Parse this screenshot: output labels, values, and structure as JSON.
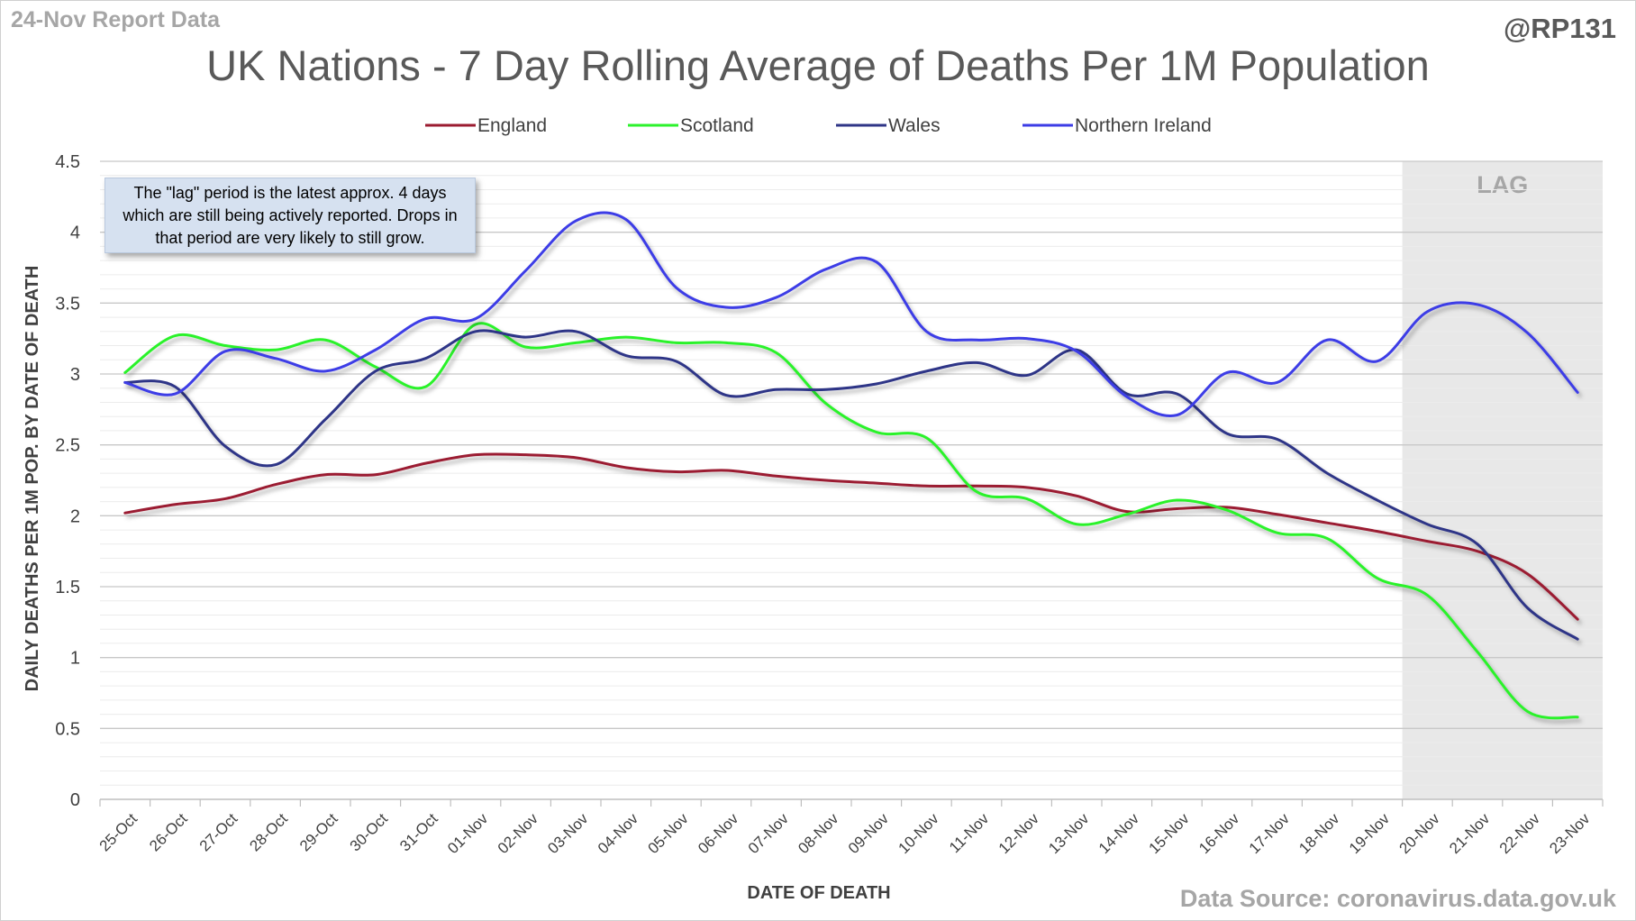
{
  "header": {
    "report_label": "24-Nov Report Data",
    "handle": "@RP131",
    "title": "UK Nations - 7 Day Rolling Average of Deaths Per 1M Population",
    "source": "Data Source: coronavirus.data.gov.uk"
  },
  "note_text": "The \"lag\" period is the latest approx. 4 days which are still being actively reported. Drops in that period are very likely to still grow.",
  "chart_data": {
    "type": "line",
    "xlabel": "DATE OF DEATH",
    "ylabel": "DAILY DEATHS PER 1M POP. BY DATE OF DEATH",
    "ylim": [
      0,
      4.5
    ],
    "yticks": [
      "0",
      "0.5",
      "1",
      "1.5",
      "2",
      "2.5",
      "3",
      "3.5",
      "4",
      "4.5"
    ],
    "legend_position": "top",
    "grid": true,
    "lag_label": "LAG",
    "lag_range": [
      "20-Nov",
      "23-Nov"
    ],
    "categories": [
      "25-Oct",
      "26-Oct",
      "27-Oct",
      "28-Oct",
      "29-Oct",
      "30-Oct",
      "31-Oct",
      "01-Nov",
      "02-Nov",
      "03-Nov",
      "04-Nov",
      "05-Nov",
      "06-Nov",
      "07-Nov",
      "08-Nov",
      "09-Nov",
      "10-Nov",
      "11-Nov",
      "12-Nov",
      "13-Nov",
      "14-Nov",
      "15-Nov",
      "16-Nov",
      "17-Nov",
      "18-Nov",
      "19-Nov",
      "20-Nov",
      "21-Nov",
      "22-Nov",
      "23-Nov"
    ],
    "series": [
      {
        "name": "England",
        "color": "#9b1b30",
        "values": [
          2.02,
          2.08,
          2.12,
          2.22,
          2.29,
          2.29,
          2.37,
          2.43,
          2.43,
          2.41,
          2.34,
          2.31,
          2.32,
          2.28,
          2.25,
          2.23,
          2.21,
          2.21,
          2.2,
          2.14,
          2.03,
          2.05,
          2.06,
          2.01,
          1.95,
          1.89,
          1.82,
          1.75,
          1.59,
          1.27
        ]
      },
      {
        "name": "Scotland",
        "color": "#2cf22c",
        "values": [
          3.01,
          3.27,
          3.2,
          3.17,
          3.24,
          3.05,
          2.91,
          3.35,
          3.19,
          3.22,
          3.26,
          3.22,
          3.22,
          3.15,
          2.79,
          2.59,
          2.55,
          2.17,
          2.12,
          1.94,
          2.01,
          2.11,
          2.04,
          1.88,
          1.84,
          1.56,
          1.44,
          1.04,
          0.62,
          0.58
        ]
      },
      {
        "name": "Wales",
        "color": "#2f3587",
        "values": [
          2.94,
          2.91,
          2.49,
          2.36,
          2.68,
          3.02,
          3.11,
          3.3,
          3.26,
          3.3,
          3.13,
          3.09,
          2.85,
          2.89,
          2.89,
          2.93,
          3.02,
          3.08,
          2.99,
          3.17,
          2.86,
          2.86,
          2.58,
          2.54,
          2.3,
          2.11,
          1.94,
          1.8,
          1.35,
          1.13
        ]
      },
      {
        "name": "Northern Ireland",
        "color": "#3c3ce6",
        "values": [
          2.94,
          2.86,
          3.16,
          3.11,
          3.02,
          3.17,
          3.39,
          3.39,
          3.73,
          4.08,
          4.09,
          3.61,
          3.47,
          3.54,
          3.74,
          3.79,
          3.3,
          3.24,
          3.25,
          3.16,
          2.84,
          2.71,
          3.01,
          2.94,
          3.24,
          3.09,
          3.44,
          3.49,
          3.29,
          2.87
        ]
      }
    ]
  }
}
